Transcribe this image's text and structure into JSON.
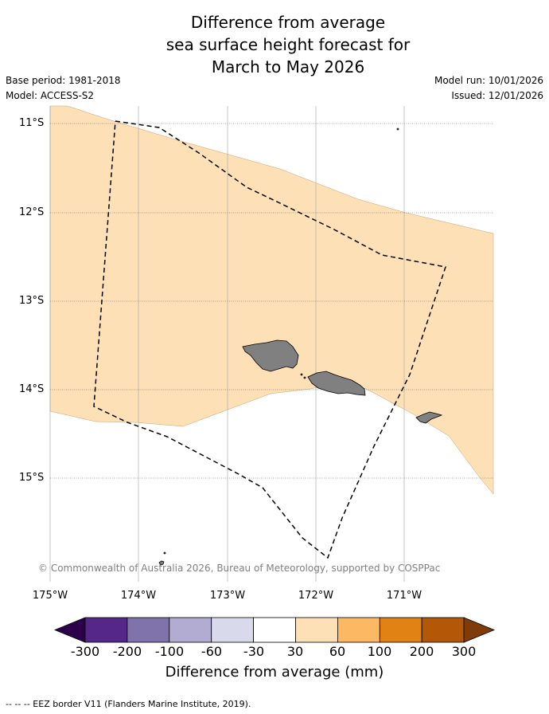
{
  "title": {
    "line1": "Difference from average",
    "line2": "sea surface height forecast for",
    "line3": "March to May 2026"
  },
  "meta": {
    "base_period": "Base period: 1981-2018",
    "model": "Model: ACCESS-S2",
    "model_run": "Model run: 10/01/2026",
    "issued": "Issued: 12/01/2026"
  },
  "map": {
    "lat_labels": [
      "11°S",
      "12°S",
      "13°S",
      "14°S",
      "15°S"
    ],
    "lon_labels": [
      "175°W",
      "174°W",
      "173°W",
      "172°W",
      "171°W"
    ],
    "land_color": "#808080",
    "anomaly_fill_color": "#fde0b6",
    "eez_line_color": "#000000",
    "copyright": "© Commonwealth of Australia 2026, Bureau of Meteorology, supported by COSPPac"
  },
  "colorbar": {
    "colors": [
      "#2d004b",
      "#542788",
      "#8073ac",
      "#b2abd2",
      "#d8daeb",
      "#ffffff",
      "#fee0b6",
      "#fdb863",
      "#e08214",
      "#b35806",
      "#7f3b08"
    ],
    "tick_labels": [
      "-300",
      "-200",
      "-100",
      "-60",
      "-30",
      "30",
      "60",
      "100",
      "200",
      "300"
    ],
    "title": "Difference from average (mm)"
  },
  "footnote": "--  --  -- EEZ border V11 (Flanders Marine Institute, 2019)."
}
